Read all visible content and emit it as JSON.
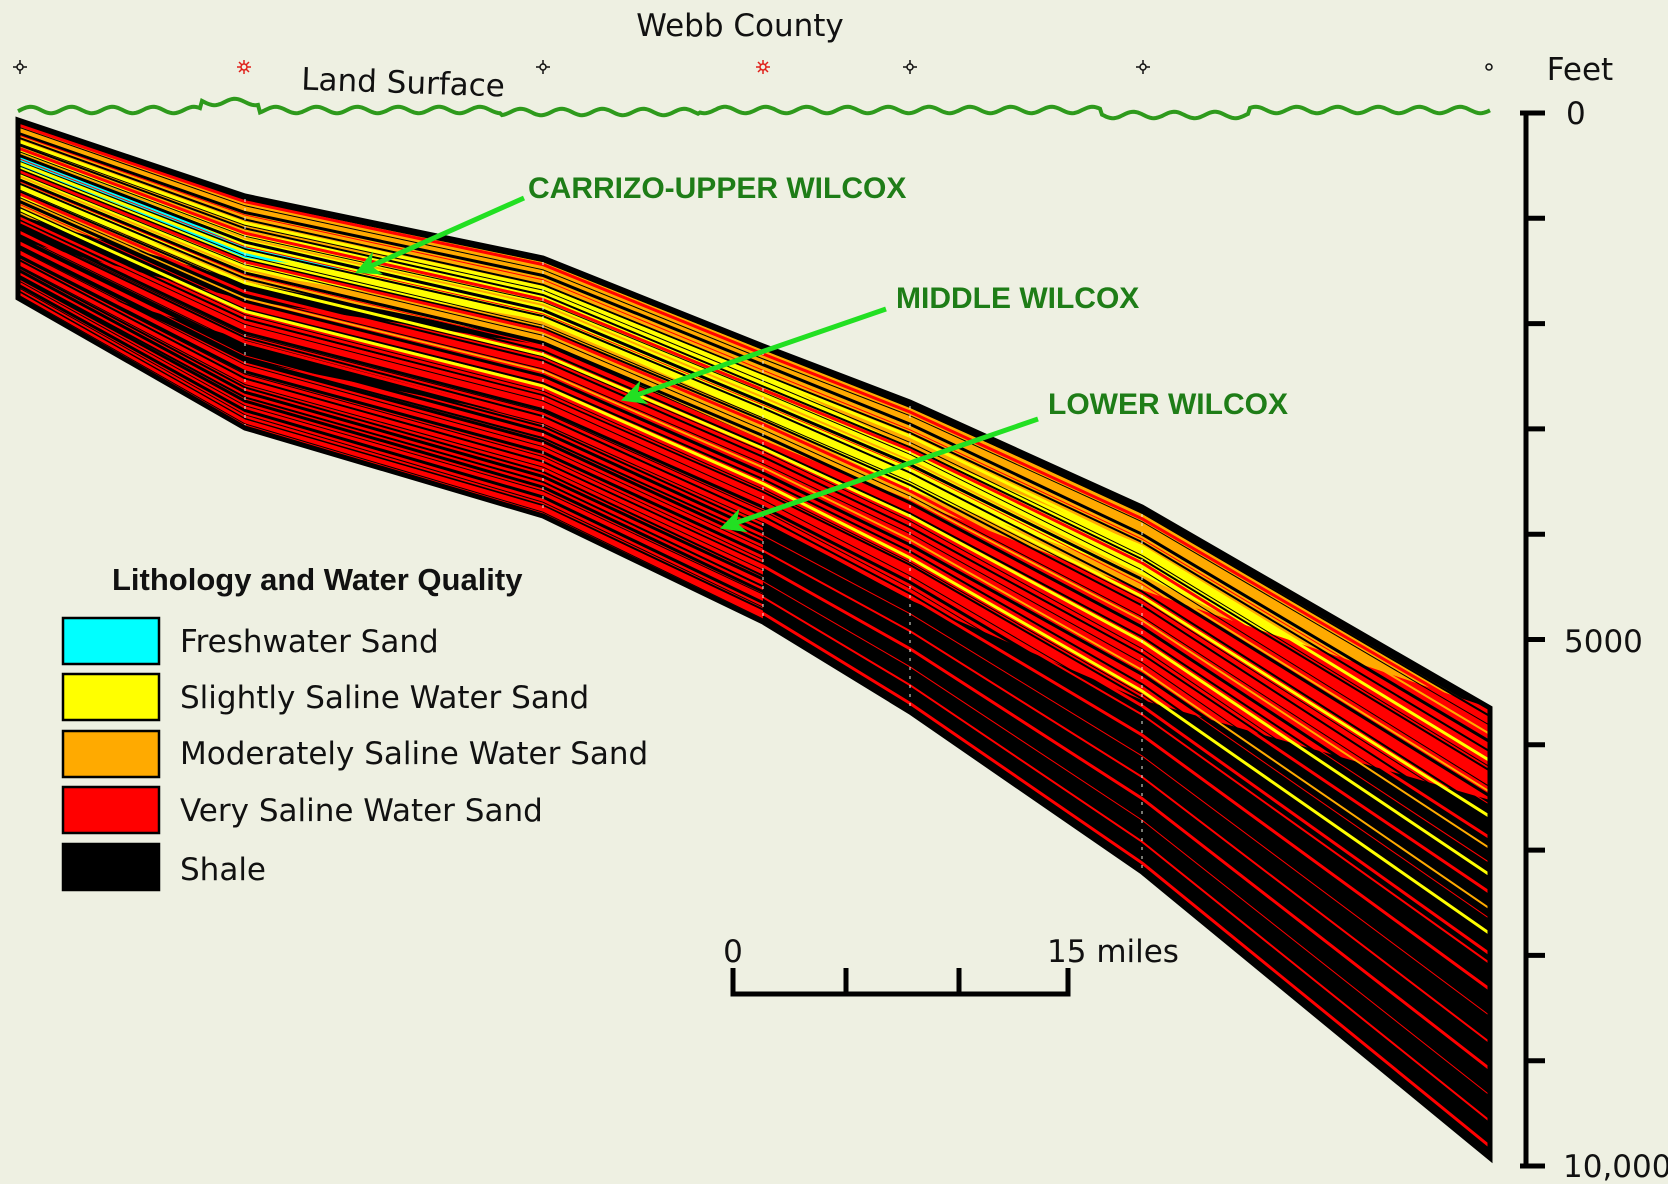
{
  "figure": {
    "county": "Webb County",
    "land_surface": "Land Surface"
  },
  "depth_scale": {
    "unit": "Feet",
    "ticks": [
      "0",
      "5000",
      "10,000"
    ]
  },
  "formations": [
    {
      "label": "CARRIZO-UPPER WILCOX"
    },
    {
      "label": "MIDDLE WILCOX"
    },
    {
      "label": "LOWER WILCOX"
    }
  ],
  "legend": {
    "title": "Lithology and Water Quality",
    "items": [
      {
        "label": "Freshwater Sand",
        "color": "#00ffff"
      },
      {
        "label": "Slightly Saline Water Sand",
        "color": "#ffff00"
      },
      {
        "label": "Moderately Saline Water Sand",
        "color": "#ffaa00"
      },
      {
        "label": "Very Saline Water Sand",
        "color": "#ff0000"
      },
      {
        "label": "Shale",
        "color": "#000000"
      }
    ]
  },
  "scale_bar": {
    "start": "0",
    "end": "15 miles"
  },
  "colors": {
    "background": "#eef0e2",
    "land_surface": "#2e9a1c",
    "arrow": "#22e022",
    "formation_text": "#1e7d17",
    "well_marker_red": "#e0201a"
  },
  "icons": {
    "well_marker": "well-symbol-icon",
    "arrow": "arrow-icon"
  }
}
